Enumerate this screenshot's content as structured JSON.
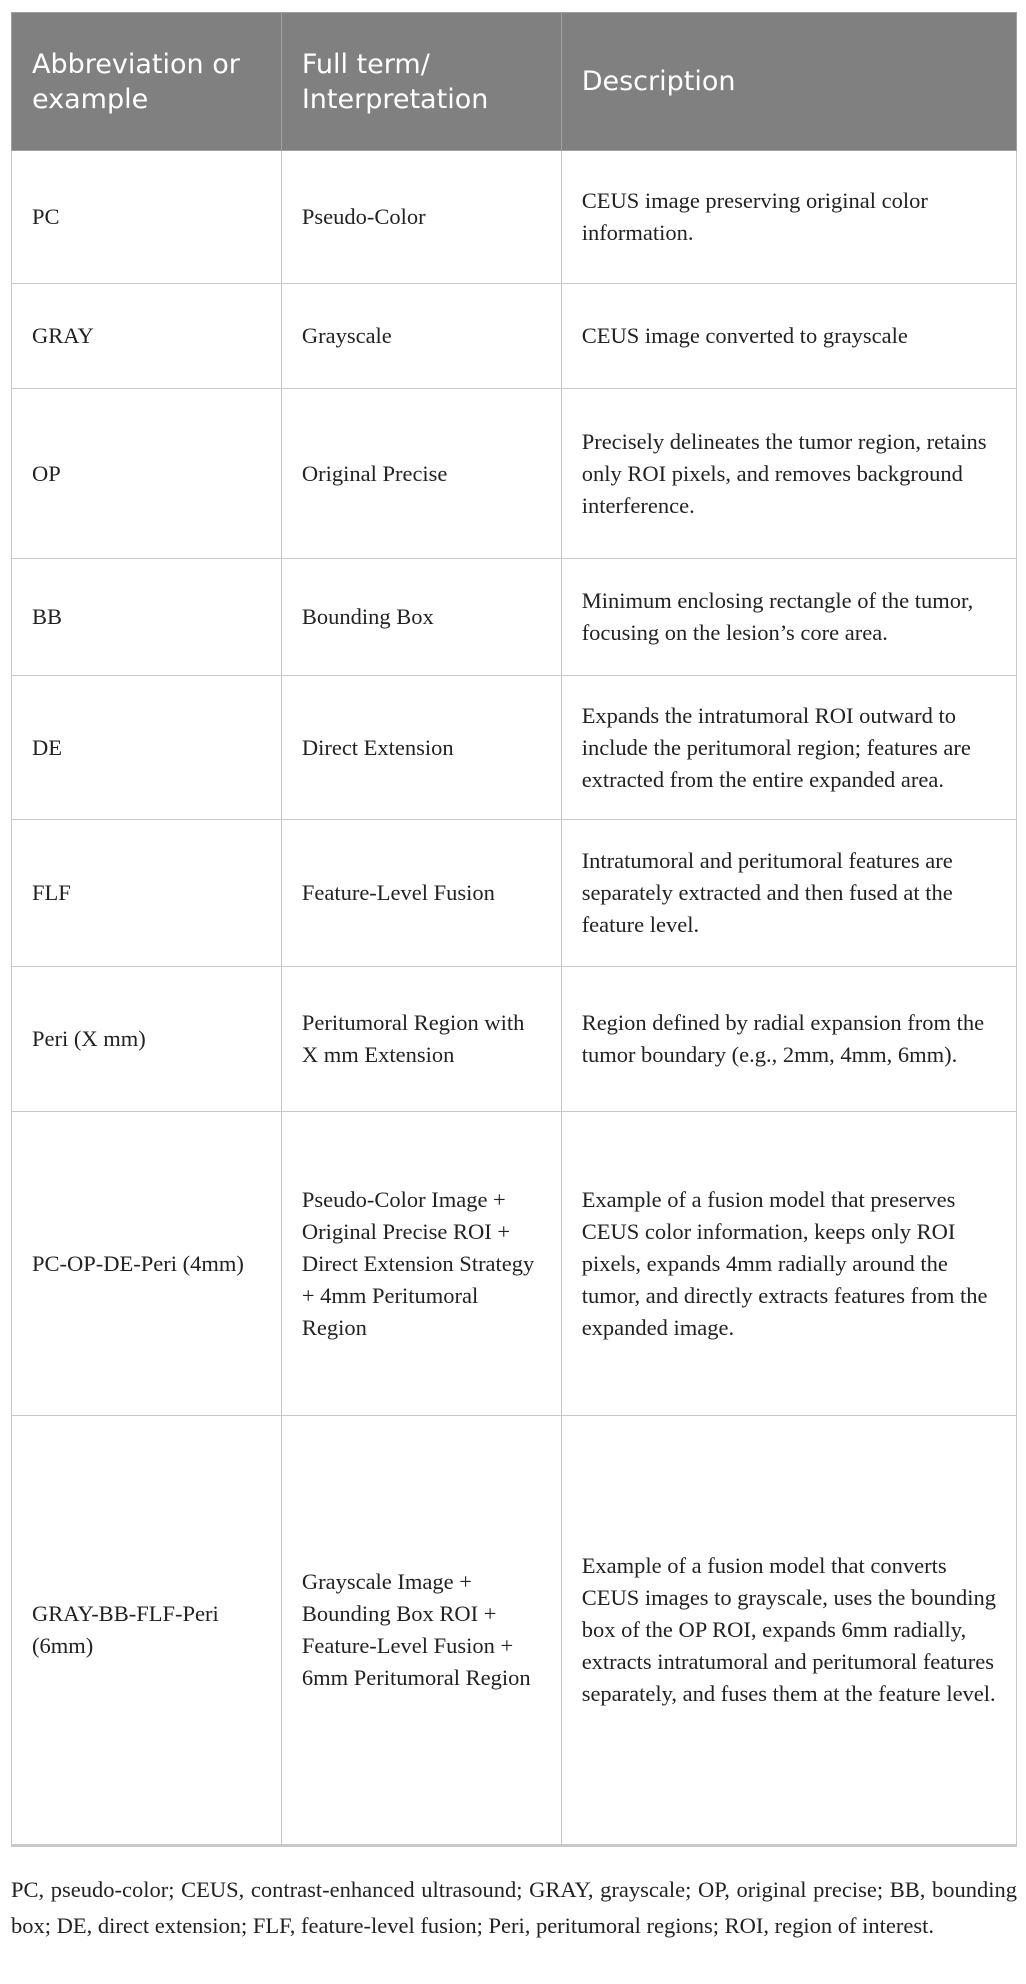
{
  "headers": [
    "Abbreviation or example",
    "Full term/ Interpretation",
    "Description"
  ],
  "rows": [
    {
      "abbr": "PC",
      "term": "Pseudo-Color",
      "desc": "CEUS image preserving original color information."
    },
    {
      "abbr": "GRAY",
      "term": "Grayscale",
      "desc": "CEUS image converted to grayscale"
    },
    {
      "abbr": "OP",
      "term": "Original Precise",
      "desc": "Precisely delineates the tumor region, retains only ROI pixels, and removes background interference."
    },
    {
      "abbr": "BB",
      "term": "Bounding Box",
      "desc": "Minimum enclosing rectangle of the tumor, focusing on the lesion’s core area."
    },
    {
      "abbr": "DE",
      "term": "Direct Extension",
      "desc": "Expands the intratumoral ROI outward to include the peritumoral region; features are extracted from the entire expanded area."
    },
    {
      "abbr": "FLF",
      "term": "Feature-Level Fusion",
      "desc": "Intratumoral and peritumoral features are separately extracted and then fused at the feature level."
    },
    {
      "abbr": "Peri (X mm)",
      "term": "Peritumoral Region with X mm Extension",
      "desc": "Region defined by radial expansion from the tumor boundary (e.g., 2mm, 4mm, 6mm)."
    },
    {
      "abbr": "PC-OP-DE-Peri (4mm)",
      "term": "Pseudo-Color Image + Original Precise ROI + Direct Extension Strategy + 4mm Peritumoral Region",
      "desc": "Example of a fusion model that preserves CEUS color information, keeps only ROI pixels, expands 4mm radially around the tumor, and directly extracts features from the expanded image."
    },
    {
      "abbr": "GRAY-BB-FLF-Peri (6mm)",
      "term": "Grayscale Image + Bounding Box ROI + Feature-Level Fusion + 6mm Peritumoral Region",
      "desc": "Example of a fusion model that converts CEUS images to grayscale, uses the bounding box of the OP ROI, expands 6mm radially, extracts intratumoral and peritumoral features separately, and fuses them at the feature level."
    }
  ],
  "footnote": "PC, pseudo-color; CEUS, contrast-enhanced ultrasound; GRAY, grayscale; OP, original precise; BB, bounding box; DE, direct extension; FLF, feature-level fusion; Peri, peritumoral regions; ROI, region of interest.",
  "colors": {
    "header_bg": "#808080",
    "header_text": "#ffffff",
    "border": "#c8c8c8"
  }
}
